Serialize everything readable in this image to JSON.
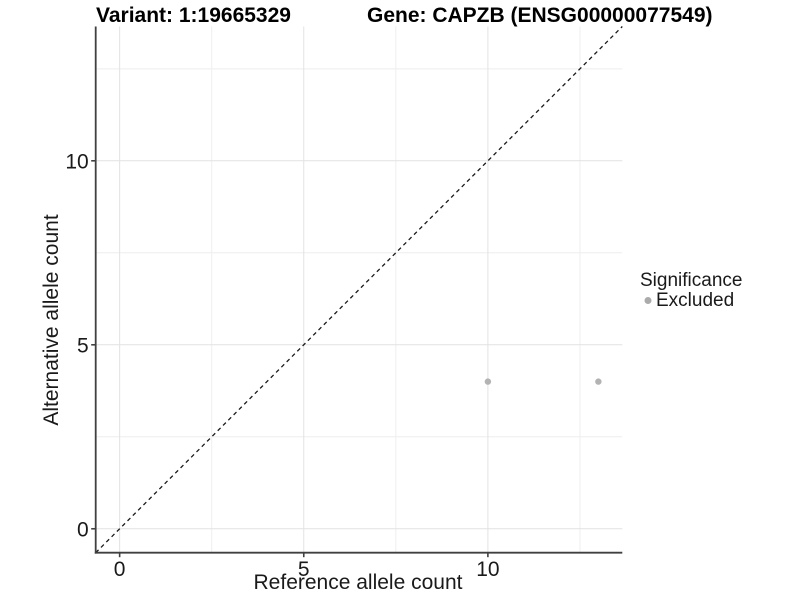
{
  "header": {
    "variant_title": "Variant: 1:19665329",
    "gene_title": "Gene: CAPZB (ENSG00000077549)"
  },
  "chart_data": {
    "type": "scatter",
    "xlabel": "Reference allele count",
    "ylabel": "Alternative allele count",
    "xlim": [
      -0.65,
      13.65
    ],
    "ylim": [
      -0.65,
      13.65
    ],
    "x_major_ticks": [
      0,
      5,
      10
    ],
    "x_minor_ticks": [
      2.5,
      7.5,
      12.5
    ],
    "y_major_ticks": [
      0,
      5,
      10
    ],
    "y_minor_ticks": [
      2.5,
      7.5,
      12.5
    ],
    "grid": "major and minor gridlines, white background",
    "identity_line": {
      "slope": 1,
      "intercept": 0,
      "style": "dashed",
      "color": "#1a1a1a"
    },
    "series": [
      {
        "name": "Excluded",
        "marker": "circle",
        "color": "#b3b3b3",
        "points": [
          [
            10,
            4
          ],
          [
            13,
            4
          ]
        ]
      }
    ],
    "legend": {
      "title": "Significance",
      "position": "right",
      "entries": [
        {
          "label": "Excluded",
          "color": "#ababab"
        }
      ]
    },
    "colors": {
      "axis": "#404040",
      "tick_label": "#1a1a1a",
      "grid_major": "#e2e2e2",
      "grid_minor": "#eeeeee",
      "background": "#ffffff"
    }
  }
}
